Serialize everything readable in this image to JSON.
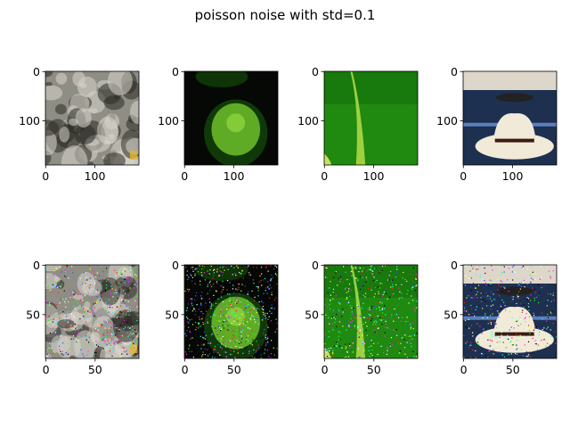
{
  "chart_data": {
    "type": "image_grid",
    "title": "poisson noise with std=0.1",
    "panels": [
      {
        "id": "top-1",
        "content": "gray rocky texture",
        "image_size": 190,
        "xticks": [
          0,
          100
        ],
        "yticks": [
          0,
          100
        ],
        "palette": {
          "base": "#8f8e85",
          "light": "#d8d6cc",
          "dark": "#2b2a24",
          "accent": "#e0b830"
        },
        "noise": 0
      },
      {
        "id": "top-2",
        "content": "green fruit on black",
        "image_size": 190,
        "xticks": [
          0,
          100
        ],
        "yticks": [
          0,
          100
        ],
        "palette": {
          "base": "#050805",
          "light": "#6fbf2a",
          "dark": "#0f3a08",
          "accent": "#94d840"
        },
        "noise": 0
      },
      {
        "id": "top-3",
        "content": "green leaf with blade",
        "image_size": 190,
        "xticks": [
          0,
          100
        ],
        "yticks": [
          0,
          100
        ],
        "palette": {
          "base": "#1f8a0f",
          "light": "#9fd040",
          "dark": "#0c5a08",
          "accent": "#c8e060"
        },
        "noise": 0
      },
      {
        "id": "top-4",
        "content": "white cowboy hat",
        "image_size": 190,
        "xticks": [
          0,
          100
        ],
        "yticks": [
          0,
          100
        ],
        "palette": {
          "base": "#1e3050",
          "light": "#f2ead8",
          "dark": "#3a1c10",
          "accent": "#5a7fc0"
        },
        "noise": 0
      },
      {
        "id": "bottom-1",
        "content": "gray rocky texture, noisy",
        "image_size": 95,
        "xticks": [
          0,
          50
        ],
        "yticks": [
          0,
          50
        ],
        "palette": {
          "base": "#8f8e85",
          "light": "#d8d6cc",
          "dark": "#2b2a24",
          "accent": "#e0b830"
        },
        "noise": 0.22
      },
      {
        "id": "bottom-2",
        "content": "green fruit on black, noisy",
        "image_size": 95,
        "xticks": [
          0,
          50
        ],
        "yticks": [
          0,
          50
        ],
        "palette": {
          "base": "#050805",
          "light": "#6fbf2a",
          "dark": "#0f3a08",
          "accent": "#94d840"
        },
        "noise": 0.3
      },
      {
        "id": "bottom-3",
        "content": "green leaf with blade, noisy",
        "image_size": 95,
        "xticks": [
          0,
          50
        ],
        "yticks": [
          0,
          50
        ],
        "palette": {
          "base": "#1f8a0f",
          "light": "#9fd040",
          "dark": "#0c5a08",
          "accent": "#c8e060"
        },
        "noise": 0.22
      },
      {
        "id": "bottom-4",
        "content": "white cowboy hat, noisy",
        "image_size": 95,
        "xticks": [
          0,
          50
        ],
        "yticks": [
          0,
          50
        ],
        "palette": {
          "base": "#1e3050",
          "light": "#f2ead8",
          "dark": "#3a1c10",
          "accent": "#5a7fc0"
        },
        "noise": 0.18
      }
    ]
  }
}
